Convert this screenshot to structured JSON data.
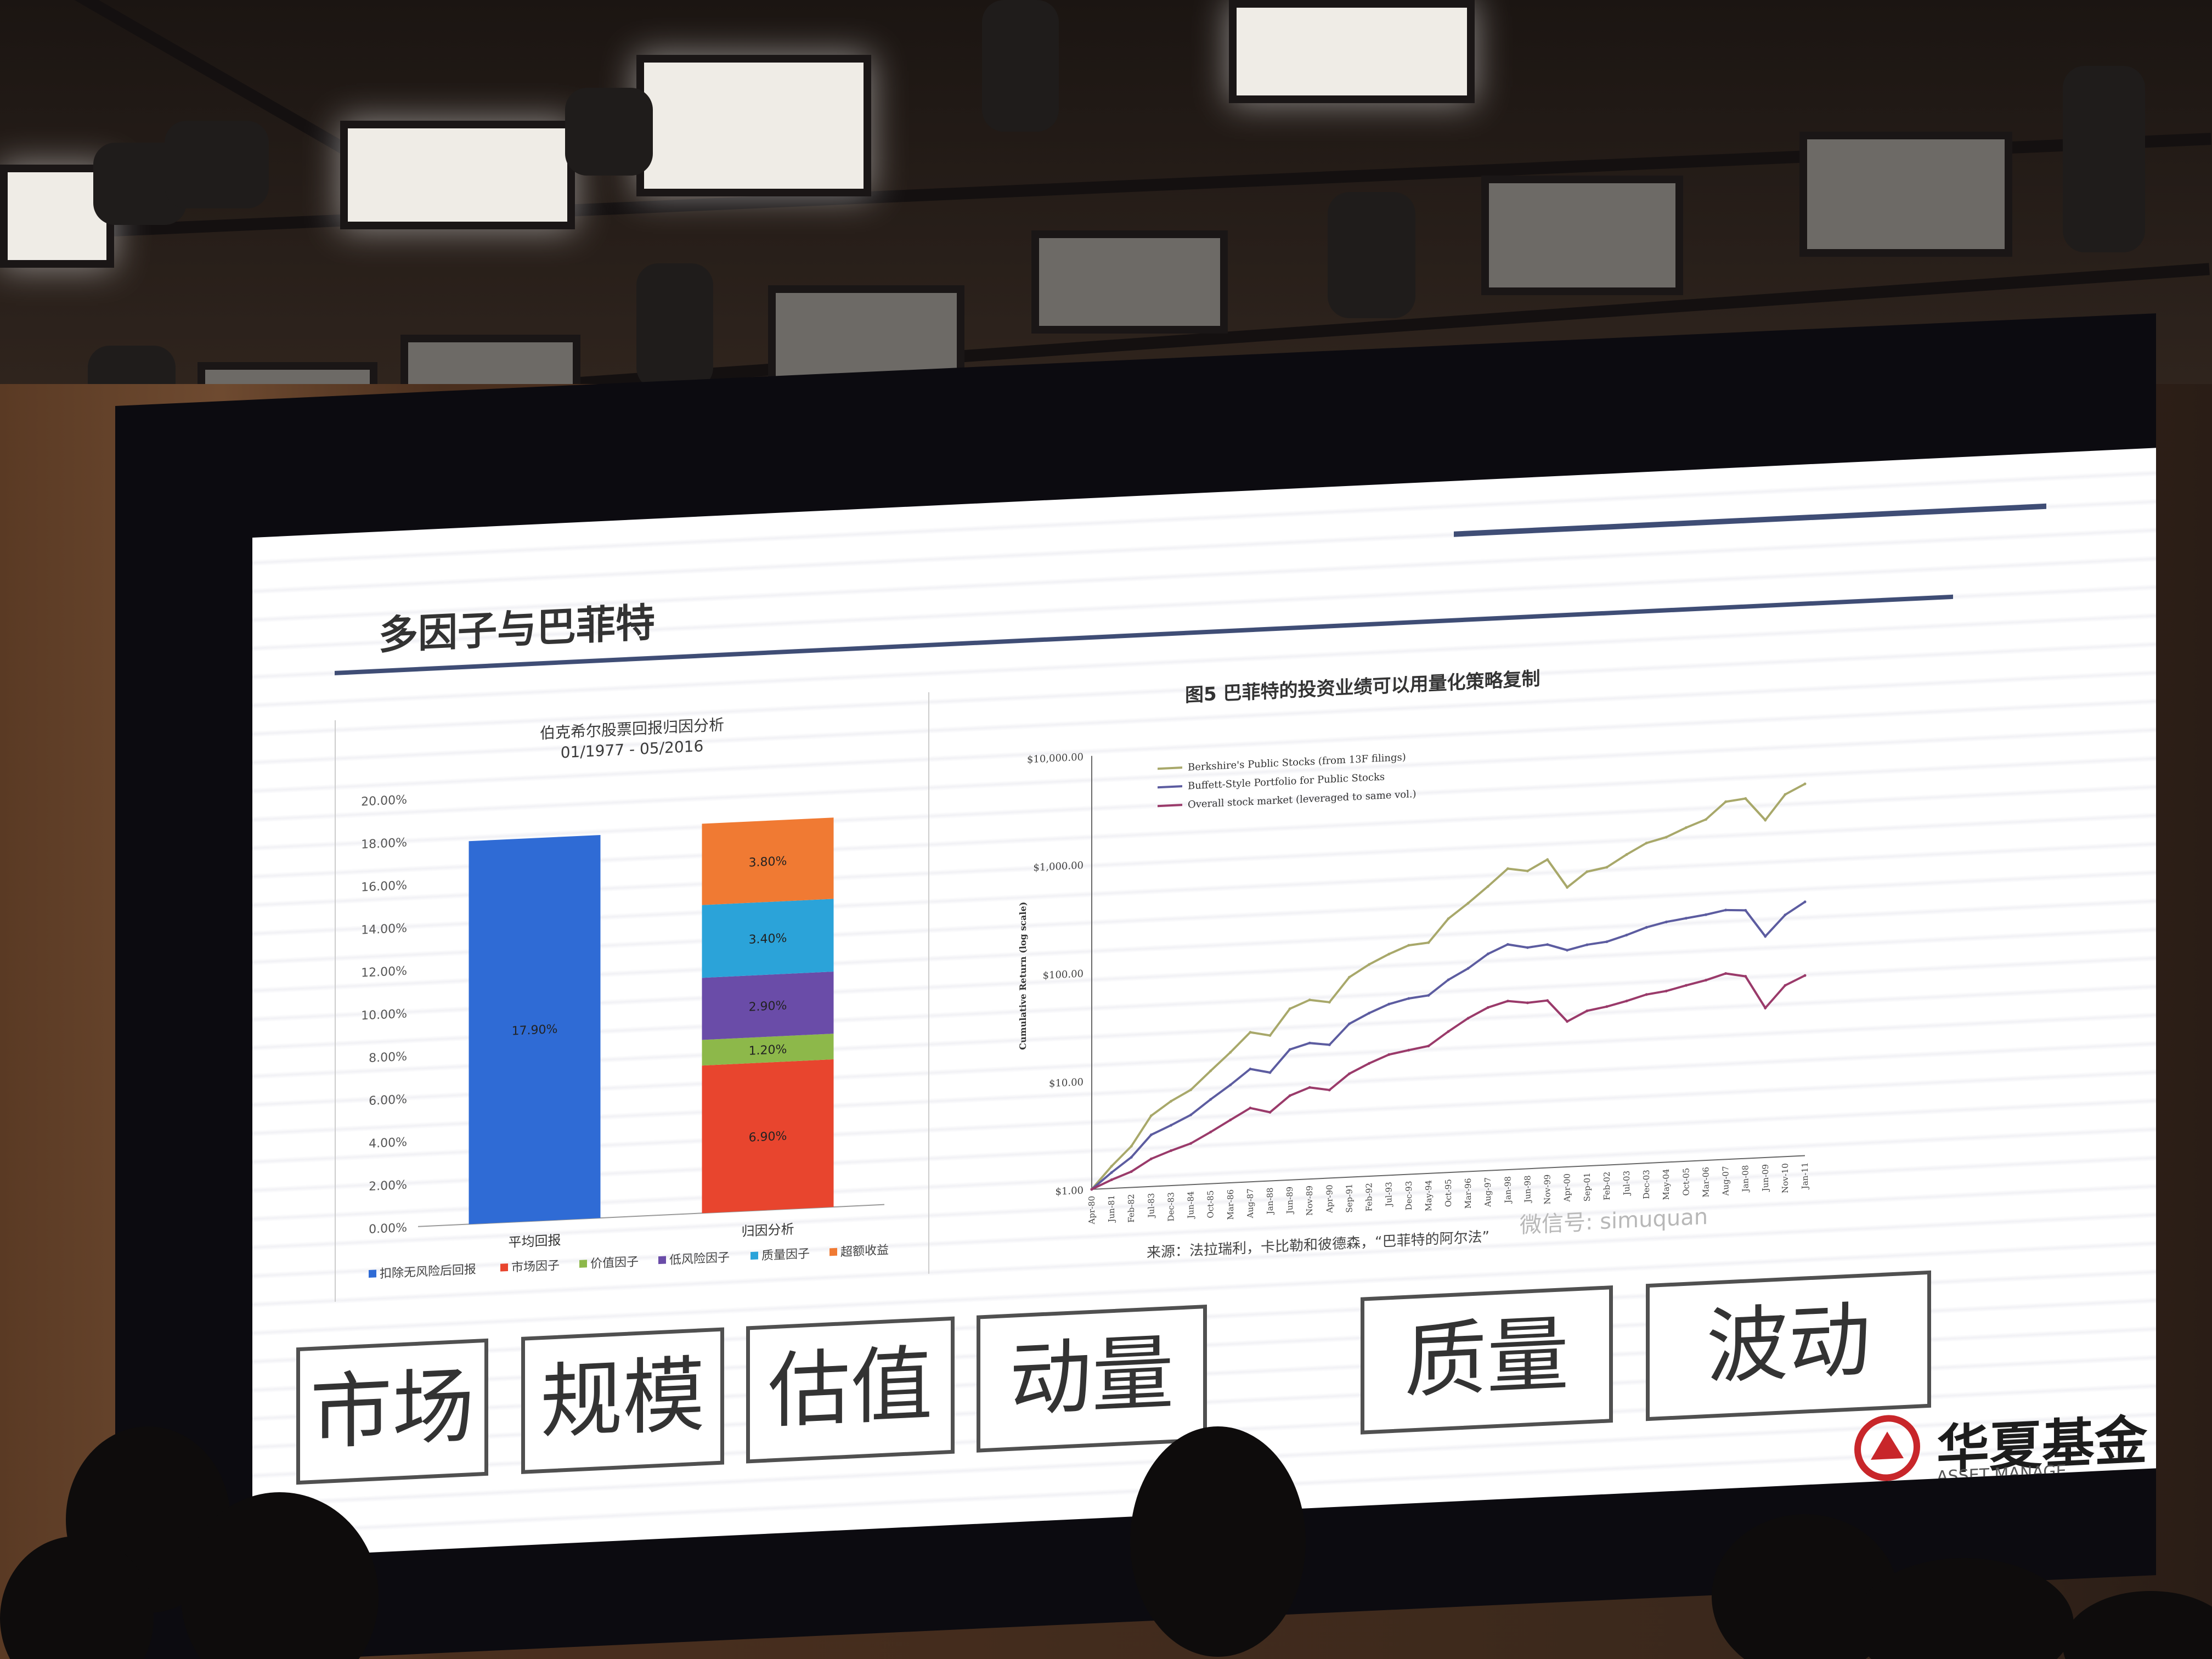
{
  "slide": {
    "title": "多因子与巴菲特"
  },
  "left_chart": {
    "title": "伯克希尔股票回报归因分析",
    "subtitle": "01/1977 - 05/2016",
    "legend": [
      "扣除无风险后回报",
      "市场因子",
      "价值因子",
      "低风险因子",
      "质量因子",
      "超额收益"
    ],
    "legend_colors": [
      "#2f6bd5",
      "#e8452e",
      "#8db84a",
      "#6a4ca8",
      "#2ba3d9",
      "#f07a33"
    ]
  },
  "right_chart": {
    "title": "图5  巴菲特的投资业绩可以用量化策略复制",
    "ylabel": "Cumulative Return (log scale)",
    "source": "来源：法拉瑞利，卡比勒和彼德森，“巴菲特的阿尔法”",
    "watermark": "微信号: simuquan"
  },
  "factors": [
    "市场",
    "规模",
    "估值",
    "动量",
    "质量",
    "波动"
  ],
  "logo": {
    "name": "华夏基金",
    "subtitle": "ASSET MANAGE"
  },
  "chart_data": [
    {
      "type": "bar",
      "title": "伯克希尔股票回报归因分析",
      "subtitle": "01/1977 - 05/2016",
      "categories": [
        "平均回报",
        "归因分析"
      ],
      "ylim": [
        0,
        20
      ],
      "yticks": [
        "0.00%",
        "2.00%",
        "4.00%",
        "6.00%",
        "8.00%",
        "10.00%",
        "12.00%",
        "14.00%",
        "16.00%",
        "18.00%",
        "20.00%"
      ],
      "stacked": true,
      "series": [
        {
          "name": "扣除无风险后回报",
          "color": "#2f6bd5",
          "values": [
            17.9,
            0
          ],
          "label": "17.90%"
        },
        {
          "name": "市场因子",
          "color": "#e8452e",
          "values": [
            0,
            6.9
          ],
          "label": "6.90%"
        },
        {
          "name": "价值因子",
          "color": "#8db84a",
          "values": [
            0,
            1.2
          ],
          "label": "1.20%"
        },
        {
          "name": "低风险因子",
          "color": "#6a4ca8",
          "values": [
            0,
            2.9
          ],
          "label": "2.90%"
        },
        {
          "name": "质量因子",
          "color": "#2ba3d9",
          "values": [
            0,
            3.4
          ],
          "label": "3.40%"
        },
        {
          "name": "超额收益",
          "color": "#f07a33",
          "values": [
            0,
            3.8
          ],
          "label": "3.80%"
        }
      ],
      "legend_position": "bottom"
    },
    {
      "type": "line",
      "title": "图5  巴菲特的投资业绩可以用量化策略复制",
      "ylabel": "Cumulative Return (log scale)",
      "yscale": "log",
      "yticks": [
        "$1.00",
        "$10.00",
        "$100.00",
        "$1,000.00",
        "$10,000.00"
      ],
      "ylim": [
        1,
        10000
      ],
      "x": [
        "Apr-80",
        "Jun-81",
        "Feb-82",
        "Jul-83",
        "Dec-83",
        "Jun-84",
        "Oct-85",
        "Mar-86",
        "Aug-87",
        "Jan-88",
        "Jun-89",
        "Nov-89",
        "Apr-90",
        "Sep-91",
        "Feb-92",
        "Jul-93",
        "Dec-93",
        "May-94",
        "Oct-95",
        "Mar-96",
        "Aug-97",
        "Jan-98",
        "Jun-98",
        "Nov-99",
        "Apr-00",
        "Sep-01",
        "Feb-02",
        "Jul-03",
        "Dec-03",
        "May-04",
        "Oct-05",
        "Mar-06",
        "Aug-07",
        "Jan-08",
        "Jun-09",
        "Nov-10",
        "Jan-11"
      ],
      "legend_position": "top-left",
      "series": [
        {
          "name": "Berkshire's Public Stocks (from 13F filings)",
          "color": "#a8a86a",
          "values": [
            1,
            1.6,
            2.4,
            4.5,
            6,
            7.5,
            11,
            16,
            24,
            22,
            38,
            45,
            42,
            70,
            90,
            110,
            130,
            135,
            220,
            300,
            420,
            600,
            560,
            700,
            380,
            520,
            560,
            720,
            900,
            1000,
            1200,
            1400,
            2000,
            2100,
            1300,
            2200,
            2700
          ]
        },
        {
          "name": "Buffett-Style Portfolio for Public Stocks",
          "color": "#5c5ca0",
          "values": [
            1,
            1.4,
            1.9,
            3,
            3.6,
            4.4,
            6,
            8,
            11,
            10,
            16,
            18,
            17,
            26,
            32,
            38,
            42,
            44,
            60,
            75,
            100,
            120,
            110,
            115,
            100,
            110,
            115,
            130,
            150,
            165,
            175,
            185,
            200,
            195,
            110,
            170,
            220
          ]
        },
        {
          "name": "Overall stock market (leveraged to same vol.)",
          "color": "#9a3a6a",
          "values": [
            1,
            1.2,
            1.4,
            1.8,
            2.1,
            2.4,
            3,
            3.8,
            4.8,
            4.3,
            6,
            7,
            6.5,
            9,
            11,
            13,
            14,
            15,
            20,
            26,
            32,
            36,
            34,
            35,
            22,
            27,
            29,
            32,
            36,
            38,
            42,
            46,
            52,
            48,
            24,
            38,
            46
          ]
        }
      ]
    }
  ]
}
